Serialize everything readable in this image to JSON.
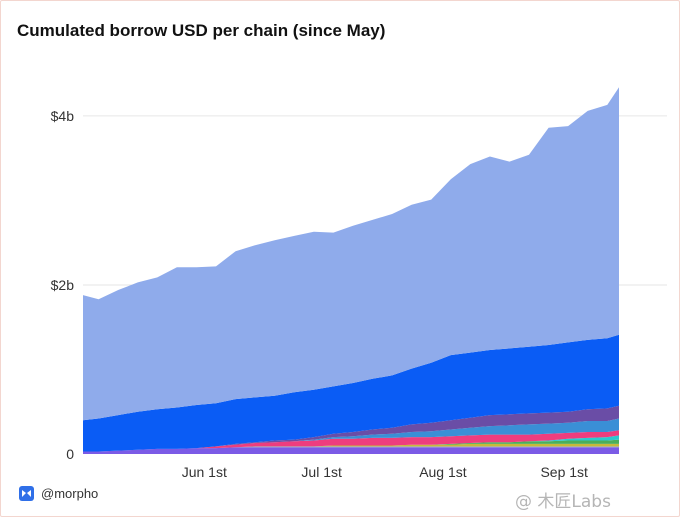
{
  "chart_data": {
    "type": "area",
    "stacked": true,
    "title": "Cumulated borrow USD per chain (since May)",
    "xlabel": "",
    "ylabel": "",
    "x_ticks": [
      "Jun 1st",
      "Jul 1st",
      "Aug 1st",
      "Sep 1st"
    ],
    "y_ticks": [
      {
        "value": 0,
        "label": "0"
      },
      {
        "value": 2000000000,
        "label": "$2b"
      },
      {
        "value": 4000000000,
        "label": "$4b"
      }
    ],
    "ylim": [
      0,
      4650000000
    ],
    "grid": true,
    "legend": "none",
    "x": [
      "2024-05-01",
      "2024-05-05",
      "2024-05-10",
      "2024-05-15",
      "2024-05-20",
      "2024-05-25",
      "2024-05-30",
      "2024-06-04",
      "2024-06-09",
      "2024-06-14",
      "2024-06-19",
      "2024-06-24",
      "2024-06-29",
      "2024-07-04",
      "2024-07-09",
      "2024-07-14",
      "2024-07-19",
      "2024-07-24",
      "2024-07-29",
      "2024-08-03",
      "2024-08-08",
      "2024-08-13",
      "2024-08-18",
      "2024-08-23",
      "2024-08-28",
      "2024-09-02",
      "2024-09-07",
      "2024-09-12",
      "2024-09-15"
    ],
    "series": [
      {
        "color": "#7b5be6",
        "values": [
          0.03,
          0.03,
          0.04,
          0.05,
          0.06,
          0.06,
          0.07,
          0.07,
          0.08,
          0.08,
          0.08,
          0.08,
          0.08,
          0.08,
          0.08,
          0.08,
          0.08,
          0.08,
          0.08,
          0.08,
          0.08,
          0.08,
          0.08,
          0.08,
          0.08,
          0.08,
          0.08,
          0.08,
          0.08
        ]
      },
      {
        "color": "#9aa8b8",
        "values": [
          0,
          0,
          0,
          0,
          0,
          0,
          0,
          0,
          0,
          0.01,
          0.01,
          0.01,
          0.01,
          0.01,
          0.01,
          0.01,
          0.01,
          0.01,
          0.01,
          0.01,
          0.01,
          0.01,
          0.01,
          0.01,
          0.01,
          0.01,
          0.01,
          0.01,
          0.01
        ]
      },
      {
        "color": "#c8b93a",
        "values": [
          0,
          0,
          0,
          0,
          0,
          0,
          0,
          0,
          0,
          0,
          0,
          0,
          0,
          0.01,
          0.01,
          0.01,
          0.01,
          0.02,
          0.02,
          0.02,
          0.03,
          0.03,
          0.03,
          0.03,
          0.03,
          0.03,
          0.03,
          0.03,
          0.03
        ]
      },
      {
        "color": "#4cae5a",
        "values": [
          0,
          0,
          0,
          0,
          0,
          0,
          0,
          0,
          0,
          0,
          0,
          0,
          0,
          0,
          0,
          0,
          0,
          0,
          0,
          0.01,
          0.01,
          0.02,
          0.02,
          0.03,
          0.03,
          0.04,
          0.04,
          0.04,
          0.05
        ]
      },
      {
        "color": "#2cc9cf",
        "values": [
          0,
          0,
          0,
          0,
          0,
          0,
          0,
          0,
          0,
          0,
          0,
          0,
          0,
          0,
          0,
          0,
          0,
          0,
          0,
          0,
          0,
          0,
          0,
          0,
          0.01,
          0.02,
          0.03,
          0.04,
          0.05
        ]
      },
      {
        "color": "#ee3d7e",
        "values": [
          0,
          0,
          0,
          0,
          0,
          0,
          0,
          0.02,
          0.03,
          0.04,
          0.05,
          0.06,
          0.07,
          0.08,
          0.08,
          0.09,
          0.09,
          0.09,
          0.09,
          0.09,
          0.09,
          0.09,
          0.09,
          0.08,
          0.08,
          0.07,
          0.07,
          0.06,
          0.06
        ]
      },
      {
        "color": "#3a8fd6",
        "values": [
          0,
          0,
          0,
          0,
          0,
          0,
          0,
          0,
          0,
          0,
          0,
          0,
          0.01,
          0.02,
          0.03,
          0.04,
          0.05,
          0.06,
          0.07,
          0.08,
          0.09,
          0.1,
          0.11,
          0.12,
          0.12,
          0.12,
          0.13,
          0.13,
          0.14
        ]
      },
      {
        "color": "#6a4da6",
        "values": [
          0,
          0,
          0,
          0,
          0,
          0,
          0,
          0,
          0.01,
          0.01,
          0.02,
          0.02,
          0.03,
          0.04,
          0.05,
          0.06,
          0.07,
          0.09,
          0.1,
          0.11,
          0.12,
          0.13,
          0.13,
          0.13,
          0.13,
          0.13,
          0.14,
          0.15,
          0.15
        ]
      },
      {
        "color": "#0a5cf5",
        "values": [
          0.37,
          0.39,
          0.42,
          0.45,
          0.47,
          0.49,
          0.51,
          0.51,
          0.53,
          0.53,
          0.53,
          0.56,
          0.56,
          0.56,
          0.58,
          0.6,
          0.62,
          0.66,
          0.71,
          0.77,
          0.77,
          0.77,
          0.78,
          0.79,
          0.8,
          0.82,
          0.82,
          0.83,
          0.84
        ]
      },
      {
        "color": "#8fabeb",
        "values": [
          1.48,
          1.41,
          1.48,
          1.53,
          1.56,
          1.66,
          1.63,
          1.62,
          1.75,
          1.8,
          1.84,
          1.85,
          1.87,
          1.82,
          1.86,
          1.88,
          1.91,
          1.94,
          1.93,
          2.08,
          2.23,
          2.29,
          2.21,
          2.27,
          2.57,
          2.56,
          2.71,
          2.76,
          2.93
        ]
      }
    ]
  },
  "footer": {
    "handle": "@morpho"
  },
  "watermark": {
    "text": "@ 木匠Labs"
  }
}
